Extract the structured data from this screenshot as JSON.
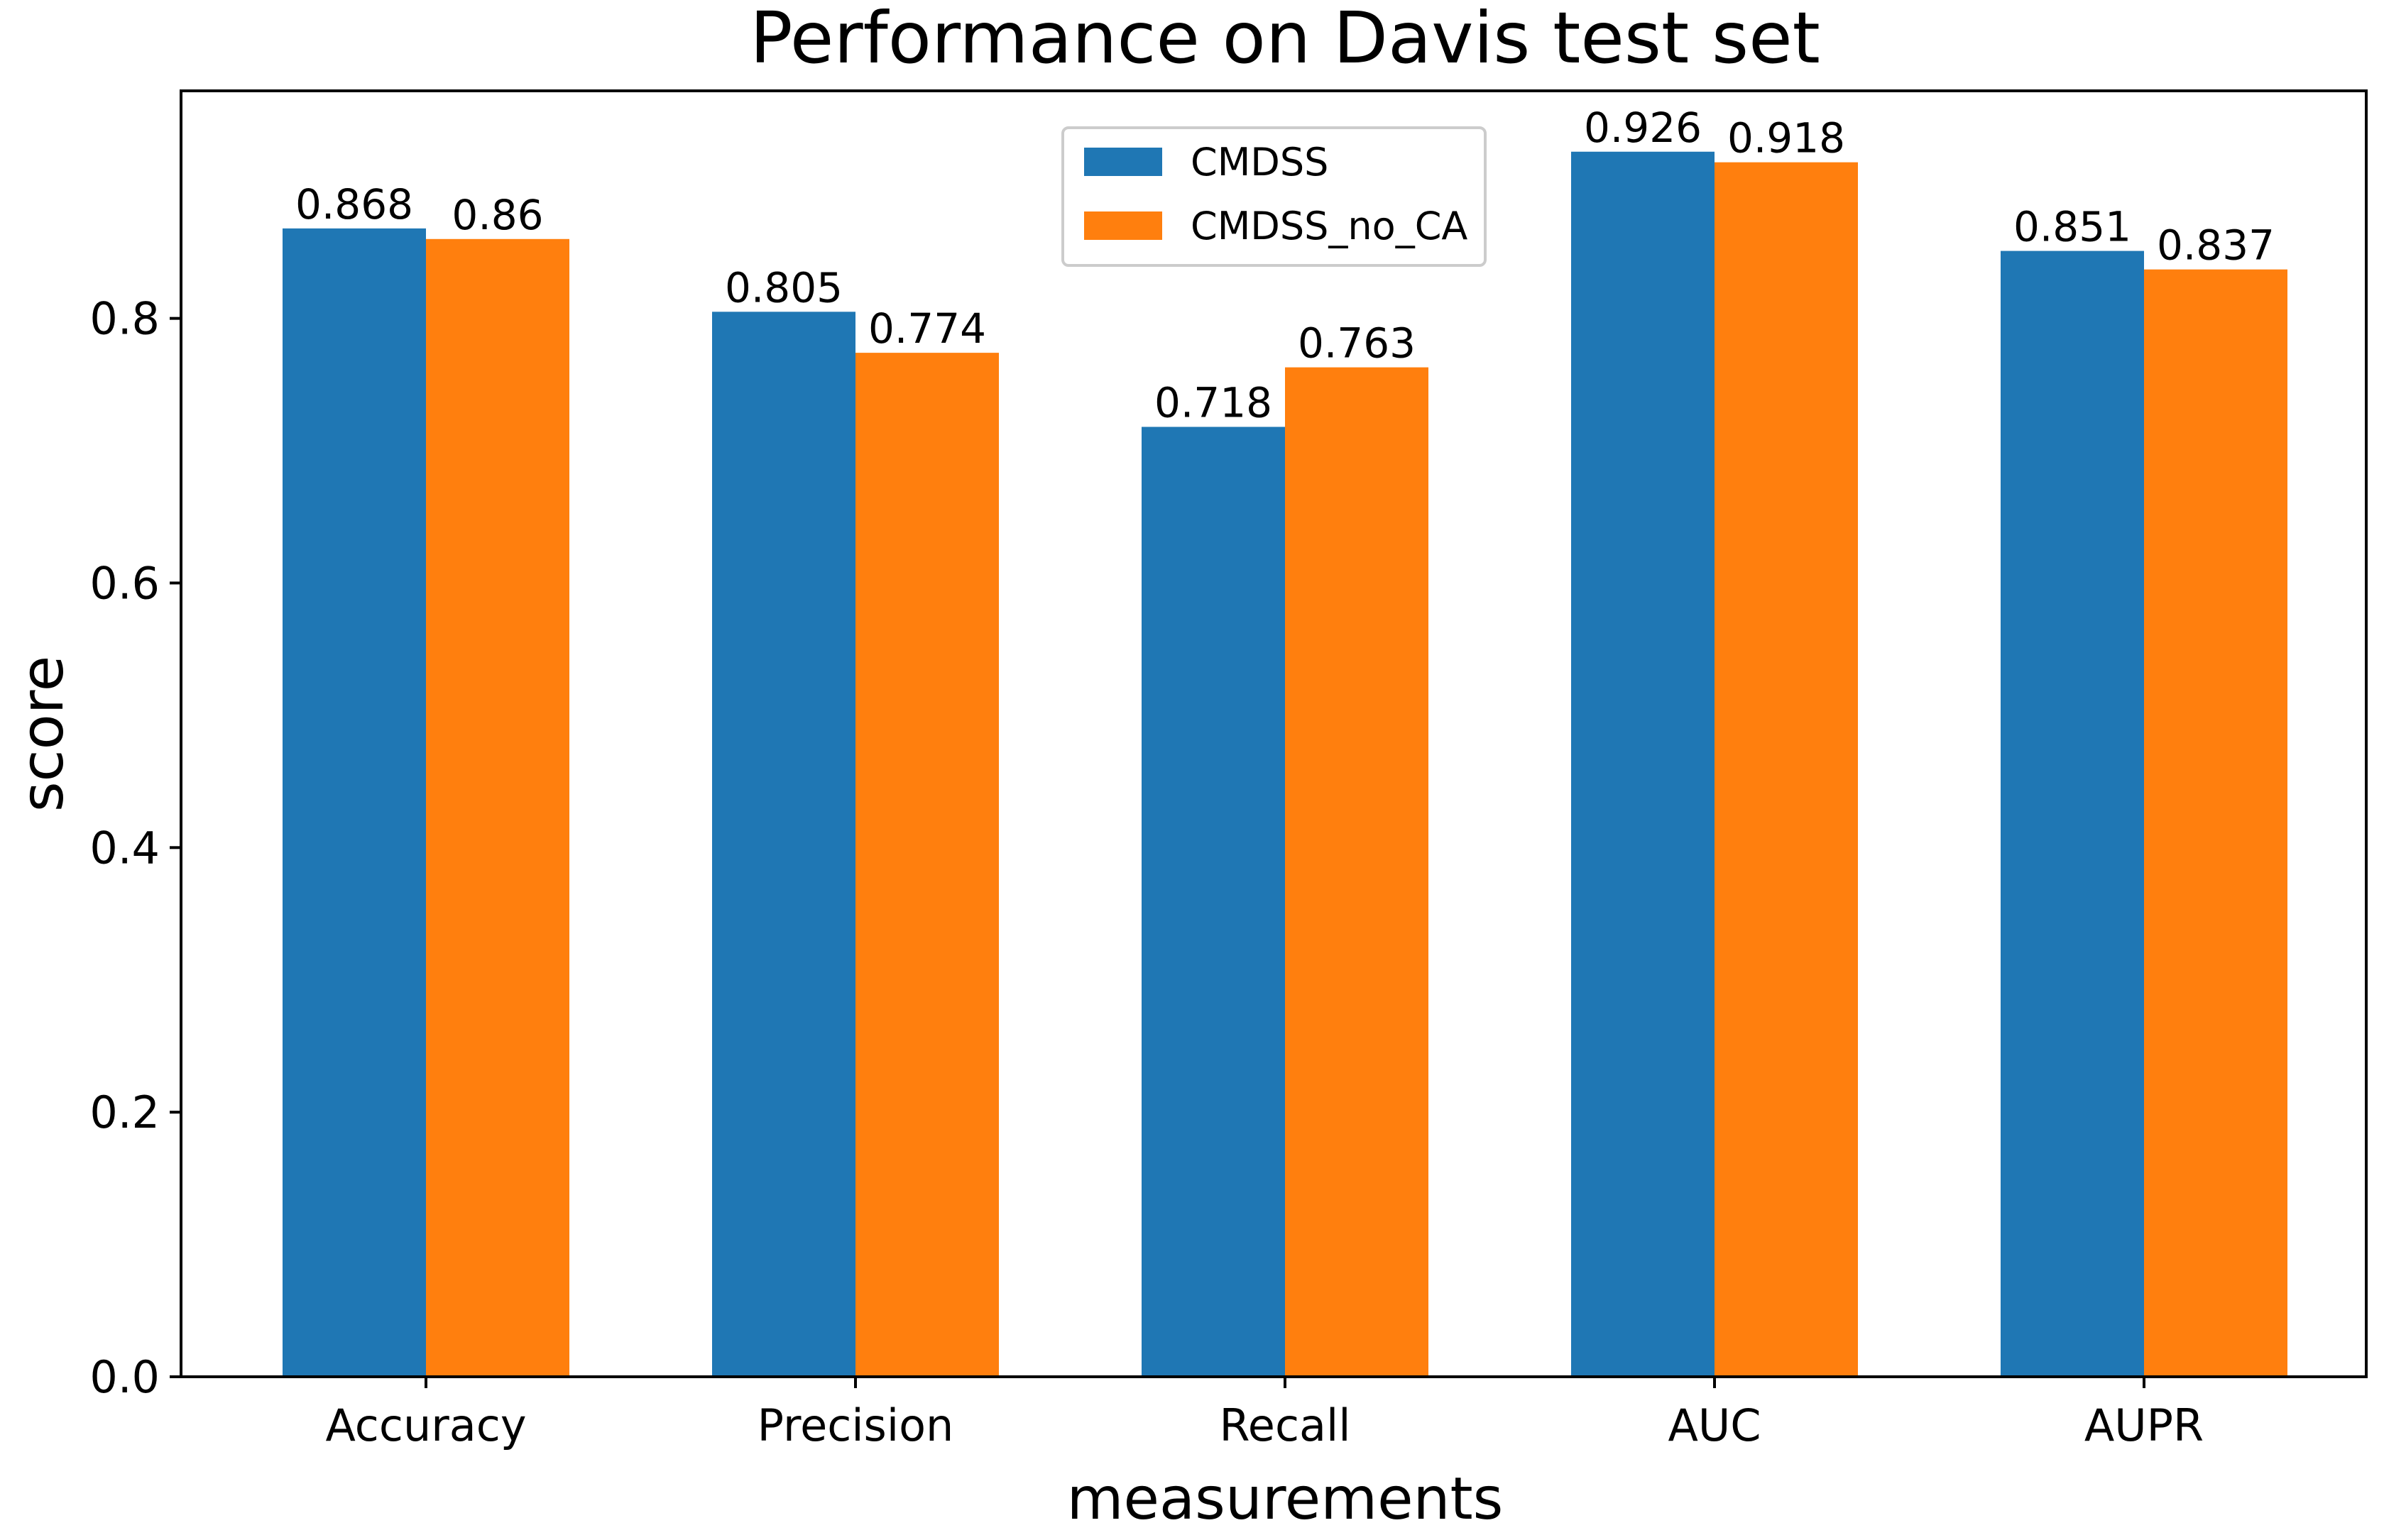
{
  "chart_data": {
    "type": "bar",
    "title": "Performance on Davis test set",
    "xlabel": "measurements",
    "ylabel": "score",
    "categories": [
      "Accuracy",
      "Precision",
      "Recall",
      "AUC",
      "AUPR"
    ],
    "series": [
      {
        "name": "CMDSS",
        "color": "#1f77b4",
        "values": [
          0.868,
          0.805,
          0.718,
          0.926,
          0.851
        ],
        "labels": [
          "0.868",
          "0.805",
          "0.718",
          "0.926",
          "0.851"
        ]
      },
      {
        "name": "CMDSS_no_CA",
        "color": "#ff7f0e",
        "values": [
          0.86,
          0.774,
          0.763,
          0.918,
          0.837
        ],
        "labels": [
          "0.86",
          "0.774",
          "0.763",
          "0.918",
          "0.837"
        ]
      }
    ],
    "ylim": [
      0,
      0.972
    ],
    "yticks": [
      0.0,
      0.2,
      0.4,
      0.6,
      0.8
    ],
    "ytick_labels": [
      "0.0",
      "0.2",
      "0.4",
      "0.6",
      "0.8"
    ],
    "grid": false,
    "legend_position": "top-center"
  }
}
